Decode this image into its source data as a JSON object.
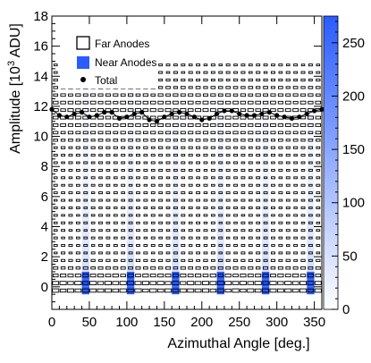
{
  "chart_data": {
    "type": "heatmap",
    "xlabel": "Azimuthal Angle [deg.]",
    "ylabel": "Amplitude [10^3 ADU]",
    "ylabel_base": "Amplitude [10",
    "ylabel_sup": "3",
    "ylabel_tail": " ADU]",
    "xlim": [
      0,
      360
    ],
    "ylim": [
      -1.5,
      18
    ],
    "x_ticks": [
      0,
      50,
      100,
      150,
      200,
      250,
      300,
      350
    ],
    "y_ticks": [
      0,
      2,
      4,
      6,
      8,
      10,
      12,
      14,
      16,
      18
    ],
    "x_tick_labels": [
      "0",
      "50",
      "100",
      "150",
      "200",
      "250",
      "300",
      "350"
    ],
    "y_tick_labels": [
      "0",
      "2",
      "4",
      "6",
      "8",
      "10",
      "12",
      "14",
      "16",
      "18"
    ],
    "colorbar": {
      "range": [
        0,
        275
      ],
      "ticks": [
        0,
        50,
        100,
        150,
        200,
        250
      ],
      "tick_labels": [
        "0",
        "50",
        "100",
        "150",
        "200",
        "250"
      ],
      "color_low": "#ffffff",
      "color_high": "#2a5cff"
    },
    "legend": {
      "placement": "top-left",
      "entries": [
        "Far Anodes",
        "Near Anodes",
        "Total"
      ]
    },
    "angle_bins": [
      5,
      15,
      25,
      35,
      45,
      55,
      65,
      75,
      85,
      95,
      105,
      115,
      125,
      135,
      145,
      155,
      165,
      175,
      185,
      195,
      205,
      215,
      225,
      235,
      245,
      255,
      265,
      275,
      285,
      295,
      305,
      315,
      325,
      335,
      345,
      355
    ],
    "near_anode_centers": [
      45,
      105,
      165,
      225,
      285,
      345
    ],
    "near_anode_peak_amplitude": 0,
    "near_anode_peak_counts": 275,
    "series": [
      {
        "name": "Total",
        "x": [
          0,
          10,
          20,
          30,
          40,
          50,
          60,
          70,
          80,
          90,
          100,
          110,
          120,
          130,
          140,
          150,
          160,
          170,
          180,
          190,
          200,
          210,
          220,
          230,
          240,
          250,
          260,
          270,
          280,
          290,
          300,
          310,
          320,
          330,
          340,
          350,
          360
        ],
        "y": [
          11.8,
          11.4,
          11.3,
          11.5,
          11.6,
          11.3,
          11.4,
          11.6,
          11.6,
          11.2,
          11.3,
          11.5,
          11.6,
          11.1,
          11.0,
          11.3,
          11.5,
          11.6,
          11.5,
          11.3,
          11.1,
          11.2,
          11.5,
          11.7,
          11.7,
          11.5,
          11.4,
          11.4,
          11.5,
          11.6,
          11.4,
          11.3,
          11.2,
          11.3,
          11.5,
          11.7,
          11.8
        ]
      }
    ]
  }
}
